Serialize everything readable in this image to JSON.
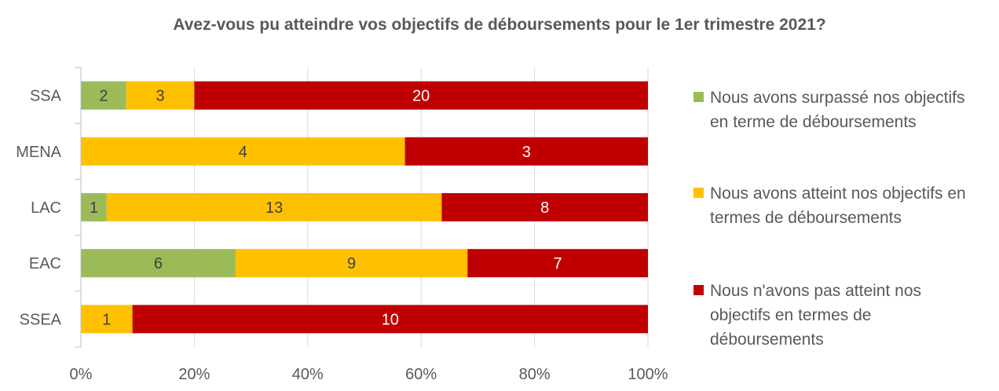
{
  "chart_data": {
    "type": "bar",
    "orientation": "horizontal",
    "stacked": "percent",
    "title": "Avez-vous pu atteindre vos objectifs de déboursements pour le 1er trimestre 2021?",
    "categories": [
      "SSA",
      "MENA",
      "LAC",
      "EAC",
      "SSEA"
    ],
    "series": [
      {
        "name": "Nous avons surpassé nos objectifs en terme de déboursements",
        "color": "#9BBB59",
        "label_color": "#404040",
        "values": [
          2,
          0,
          1,
          6,
          0
        ]
      },
      {
        "name": "Nous avons atteint nos objectifs en termes de déboursements",
        "color": "#FFC000",
        "label_color": "#404040",
        "values": [
          3,
          4,
          13,
          9,
          1
        ]
      },
      {
        "name": "Nous n'avons pas atteint nos objectifs en termes de déboursements",
        "color": "#C00000",
        "label_color": "#FFFFFF",
        "values": [
          20,
          3,
          8,
          7,
          10
        ]
      }
    ],
    "x_ticks": [
      "0%",
      "20%",
      "40%",
      "60%",
      "80%",
      "100%"
    ],
    "xlim": [
      0,
      100
    ],
    "grid": true,
    "legend_position": "right"
  }
}
